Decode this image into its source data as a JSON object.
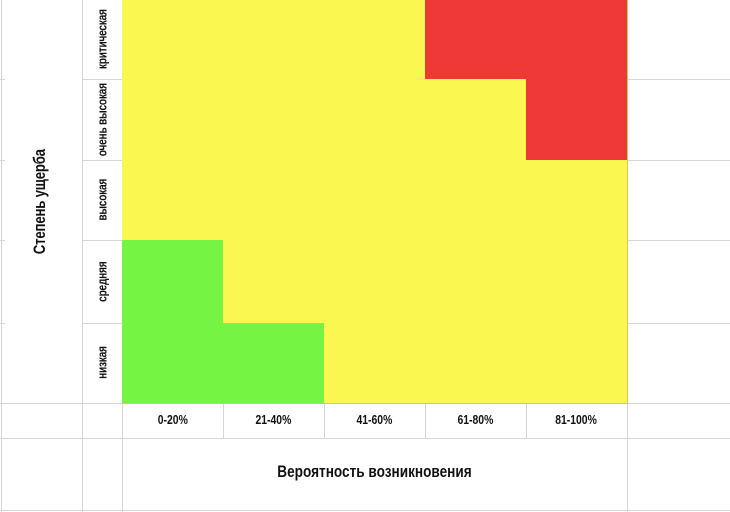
{
  "chart_data": {
    "type": "heatmap",
    "ylabel": "Степень ущерба",
    "xlabel": "Вероятность возникновения",
    "rows": [
      "критическая",
      "очень высокая",
      "высокая",
      "средняя",
      "низкая"
    ],
    "columns": [
      "0-20%",
      "21-40%",
      "41-60%",
      "61-80%",
      "81-100%"
    ],
    "levels": [
      [
        "medium",
        "medium",
        "medium",
        "high",
        "high"
      ],
      [
        "medium",
        "medium",
        "medium",
        "medium",
        "high"
      ],
      [
        "medium",
        "medium",
        "medium",
        "medium",
        "medium"
      ],
      [
        "low",
        "medium",
        "medium",
        "medium",
        "medium"
      ],
      [
        "low",
        "low",
        "medium",
        "medium",
        "medium"
      ]
    ],
    "colors": {
      "low": "#76f443",
      "medium": "#fbf751",
      "high": "#ef3936"
    }
  }
}
